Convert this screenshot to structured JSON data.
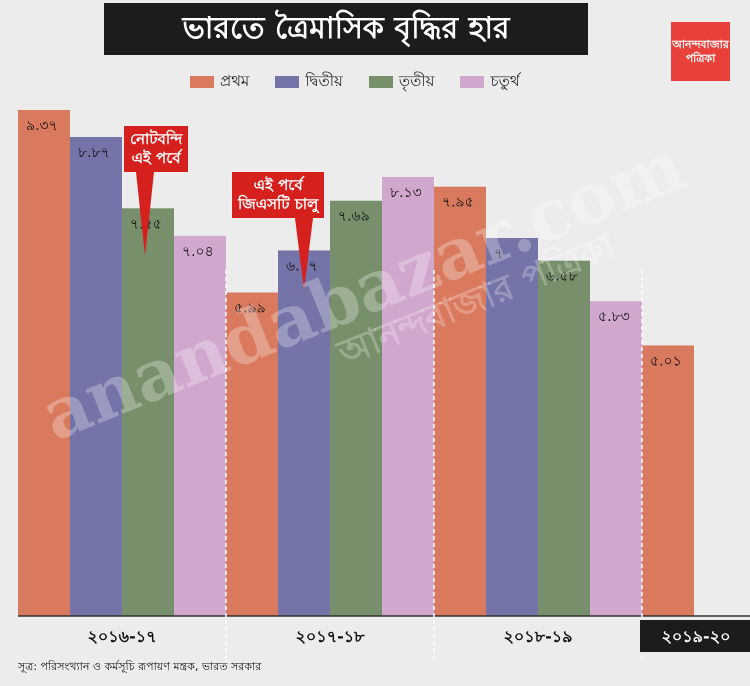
{
  "title": "ভারতে ত্রৈমাসিক বৃদ্ধির হার",
  "logo": {
    "line1": "আনন্দবাজার",
    "line2": "পত্রিকা"
  },
  "watermark": {
    "main": "anandabazar.com",
    "small": "আনন্দবাজার পত্রিকা"
  },
  "source": "সূত্র: পরিসংখ্যান ও কর্মসূচি রূপায়ণ মন্ত্রক, ভারত সরকার",
  "callouts": [
    {
      "text1": "নোটবন্দি",
      "text2": "এই পর্বে"
    },
    {
      "text1": "এই পর্বে",
      "text2": "জিএসটি চালু"
    }
  ],
  "colors": {
    "q1": "#d97a5e",
    "q2": "#7474a8",
    "q3": "#77906b",
    "q4": "#d0a7cd",
    "callout": "#d6201e",
    "dark": "#1c1c1c"
  },
  "chart_data": {
    "type": "bar",
    "title": "ভারতে ত্রৈমাসিক বৃদ্ধির হার",
    "ylim": [
      0,
      10
    ],
    "grid": false,
    "legend_position": "top",
    "series_names": [
      "প্রথম",
      "দ্বিতীয়",
      "তৃতীয়",
      "চতুর্থ"
    ],
    "groups": [
      {
        "label": "২০১৬-১৭",
        "values": [
          9.37,
          8.87,
          7.55,
          7.04
        ],
        "value_labels": [
          "৯.৩৭",
          "৮.৮৭",
          "৭.৫৫",
          "৭.০৪"
        ]
      },
      {
        "label": "২০১৭-১৮",
        "values": [
          5.99,
          6.77,
          7.69,
          8.13
        ],
        "value_labels": [
          "৫.৯৯",
          "৬.৭৭",
          "৭.৬৯",
          "৮.১৩"
        ]
      },
      {
        "label": "২০১৮-১৯",
        "values": [
          7.95,
          7,
          6.58,
          5.83
        ],
        "value_labels": [
          "৭.৯৫",
          "৭",
          "৬.৫৮",
          "৫.৮৩"
        ]
      },
      {
        "label": "২০১৯-২০",
        "values": [
          5.01
        ],
        "value_labels": [
          "৫.০১"
        ]
      }
    ]
  }
}
